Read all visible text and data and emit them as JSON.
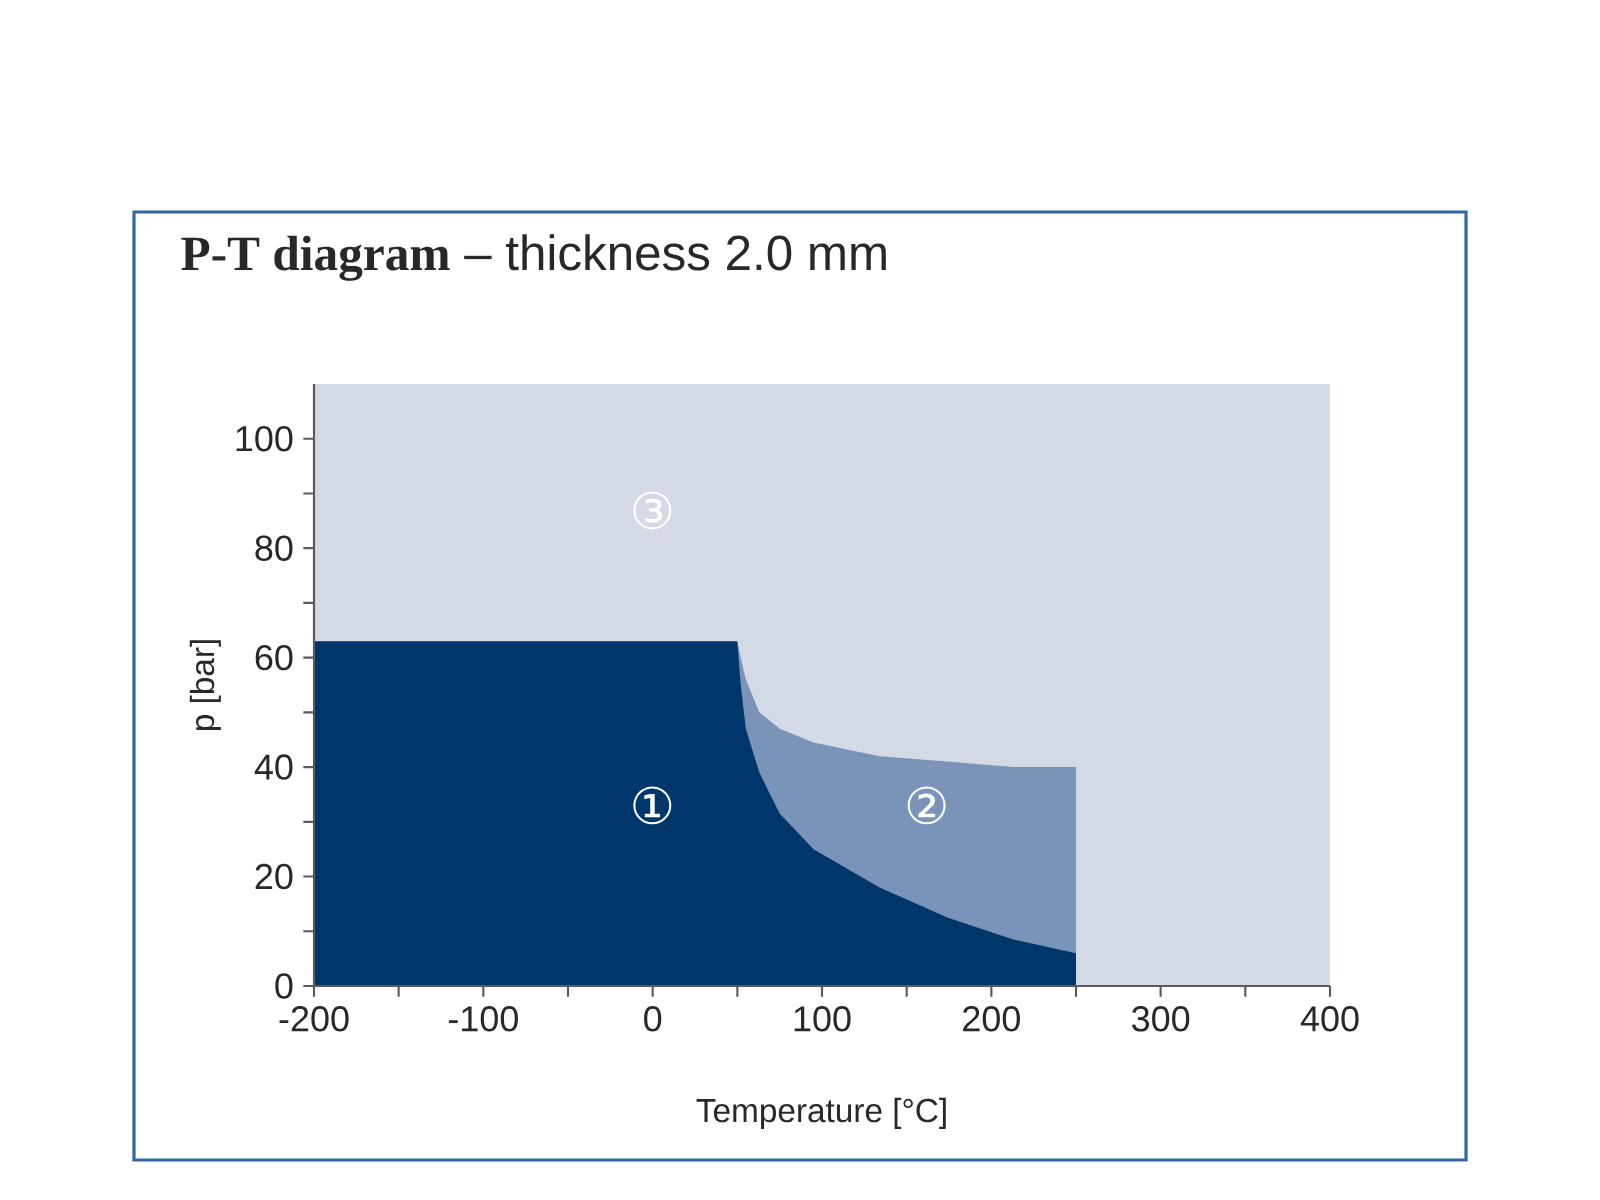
{
  "chart_data": {
    "type": "area",
    "title": "**P-T diagram** – thickness 2.0 mm",
    "xlabel": "Temperature [°C]",
    "ylabel": "p [bar]",
    "xlim": [
      -200,
      400
    ],
    "ylim": [
      0,
      110
    ],
    "xticks": [
      -200,
      {
        "value": -150,
        "label": null
      },
      -100,
      {
        "value": -50,
        "label": null
      },
      0,
      {
        "value": 50,
        "label": null
      },
      100,
      {
        "value": 150,
        "label": null
      },
      200,
      {
        "value": 250,
        "label": null
      },
      300,
      {
        "value": 350,
        "label": null
      },
      400
    ],
    "yticks": [
      0,
      {
        "value": 10,
        "label": null
      },
      20,
      {
        "value": 30,
        "label": null
      },
      40,
      {
        "value": 50,
        "label": null
      },
      60,
      {
        "value": 70,
        "label": null
      },
      80,
      {
        "value": 90,
        "label": null
      },
      100
    ],
    "series": [
      {
        "color": "#7a93b9",
        "x": [
          50,
          52,
          55,
          63,
          75,
          95,
          134,
          174,
          213,
          250
        ],
        "values": [
          63,
          60,
          56,
          50,
          47,
          44.5,
          42,
          41,
          40,
          40
        ]
      },
      {
        "color": "#00376b",
        "x": [
          -200,
          50,
          52,
          55,
          63,
          75,
          95,
          134,
          174,
          213,
          250
        ],
        "values": [
          63,
          63,
          55,
          47,
          39,
          31.5,
          25,
          18,
          12.5,
          8.5,
          6
        ]
      }
    ],
    "bands": [
      {
        "axis": "x",
        "from": -200,
        "to": 400,
        "color": "#d3dae6"
      }
    ],
    "annotations": [
      "①",
      "②",
      "③"
    ]
  }
}
